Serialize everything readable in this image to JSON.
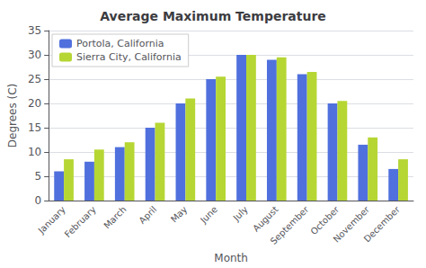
{
  "chart_data": {
    "type": "bar",
    "title": "Average Maximum Temperature",
    "xlabel": "Month",
    "ylabel": "Degrees (C)",
    "categories": [
      "January",
      "February",
      "March",
      "April",
      "May",
      "June",
      "July",
      "August",
      "September",
      "October",
      "November",
      "December"
    ],
    "series": [
      {
        "name": "Portola, California",
        "values": [
          6,
          8,
          11,
          15,
          20,
          25,
          30,
          29,
          26,
          20,
          11.5,
          6.5
        ]
      },
      {
        "name": "Sierra City, California",
        "values": [
          8.5,
          10.5,
          12,
          16,
          21,
          25.5,
          30,
          29.5,
          26.5,
          20.5,
          13,
          8.5
        ]
      }
    ],
    "ylim": [
      0,
      35
    ],
    "yticks": [
      0,
      5,
      10,
      15,
      20,
      25,
      30,
      35
    ],
    "grid": true,
    "legend": "upper left"
  }
}
